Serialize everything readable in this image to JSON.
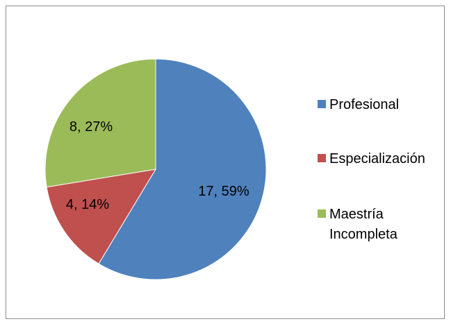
{
  "chart_data": {
    "type": "pie",
    "title": "",
    "slices": [
      {
        "name": "Profesional",
        "value": 17,
        "percent": 59,
        "label": "17, 59%",
        "color": "#4f81bd"
      },
      {
        "name": "Especialización",
        "value": 4,
        "percent": 14,
        "label": "4, 14%",
        "color": "#c0504d"
      },
      {
        "name": "Maestría Incompleta",
        "value": 8,
        "percent": 27,
        "label": "8, 27%",
        "color": "#9bbb59"
      }
    ],
    "legend": {
      "position": "right",
      "items": [
        {
          "lines": [
            "Profesional"
          ],
          "color": "#4f81bd"
        },
        {
          "lines": [
            "Especialización"
          ],
          "color": "#c0504d"
        },
        {
          "lines": [
            "Maestría",
            "Incompleta"
          ],
          "color": "#9bbb59"
        }
      ]
    }
  }
}
